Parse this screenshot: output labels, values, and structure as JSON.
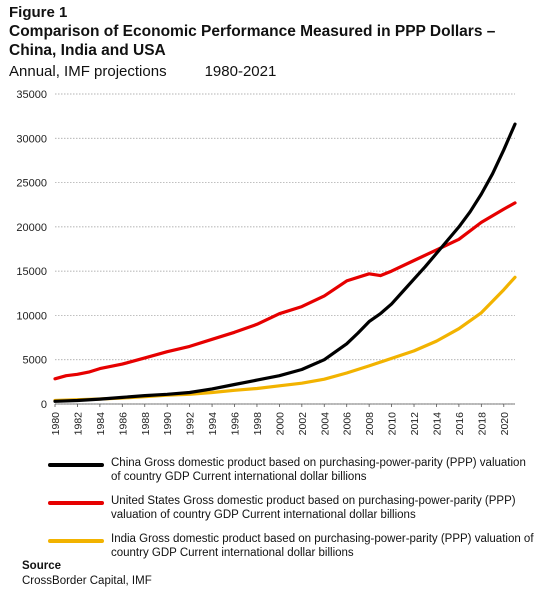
{
  "figure_label": "Figure 1",
  "title": "Comparison of Economic Performance Measured in PPP Dollars – China, India and USA",
  "subtitle": "Annual, IMF projections",
  "date_range": "1980-2021",
  "source_label": "Source",
  "source_text": "CrossBorder Capital, IMF",
  "chart_data": {
    "type": "line",
    "title": "Comparison of Economic Performance Measured in PPP Dollars – China, India and USA",
    "xlabel": "",
    "ylabel": "",
    "xlim": [
      1980,
      2021
    ],
    "ylim": [
      0,
      35000
    ],
    "yticks": [
      0,
      5000,
      10000,
      15000,
      20000,
      25000,
      30000,
      35000
    ],
    "xticks": [
      1980,
      1982,
      1984,
      1986,
      1988,
      1990,
      1992,
      1994,
      1996,
      1998,
      2000,
      2002,
      2004,
      2006,
      2008,
      2010,
      2012,
      2014,
      2016,
      2018,
      2020
    ],
    "grid": "horizontal",
    "legend_position": "bottom",
    "series": [
      {
        "name": "China Gross domestic product based on purchasing-power-parity (PPP) valuation of country GDP Current international dollar billions",
        "color": "#000000",
        "x": [
          1980,
          1982,
          1984,
          1986,
          1988,
          1990,
          1992,
          1994,
          1996,
          1998,
          2000,
          2002,
          2004,
          2006,
          2007,
          2008,
          2009,
          2010,
          2011,
          2012,
          2013,
          2014,
          2015,
          2016,
          2017,
          2018,
          2019,
          2020,
          2021
        ],
        "values": [
          300,
          400,
          550,
          750,
          950,
          1100,
          1300,
          1700,
          2200,
          2700,
          3200,
          3900,
          5000,
          6800,
          8000,
          9300,
          10200,
          11300,
          12700,
          14100,
          15500,
          17000,
          18500,
          20000,
          21700,
          23700,
          26000,
          28700,
          31600
        ]
      },
      {
        "name": "United States Gross domestic product based on purchasing-power-parity (PPP) valuation of country GDP Current international dollar billions",
        "color": "#e60000",
        "x": [
          1980,
          1981,
          1982,
          1983,
          1984,
          1986,
          1988,
          1990,
          1992,
          1994,
          1996,
          1998,
          2000,
          2002,
          2004,
          2006,
          2008,
          2009,
          2010,
          2012,
          2014,
          2016,
          2018,
          2020,
          2021
        ],
        "values": [
          2850,
          3200,
          3350,
          3600,
          4000,
          4500,
          5200,
          5900,
          6500,
          7300,
          8100,
          9000,
          10200,
          11000,
          12200,
          13900,
          14700,
          14500,
          15000,
          16200,
          17400,
          18600,
          20500,
          22000,
          22700
        ]
      },
      {
        "name": "India Gross domestic product based on purchasing-power-parity (PPP) valuation of country GDP Current international dollar billions",
        "color": "#f2b300",
        "x": [
          1980,
          1982,
          1984,
          1986,
          1988,
          1990,
          1992,
          1994,
          1996,
          1998,
          2000,
          2002,
          2004,
          2006,
          2008,
          2010,
          2012,
          2014,
          2016,
          2018,
          2020,
          2021
        ],
        "values": [
          400,
          480,
          560,
          680,
          820,
          1000,
          1100,
          1300,
          1550,
          1750,
          2050,
          2350,
          2800,
          3500,
          4300,
          5150,
          6000,
          7100,
          8500,
          10300,
          12900,
          14300
        ]
      }
    ]
  }
}
